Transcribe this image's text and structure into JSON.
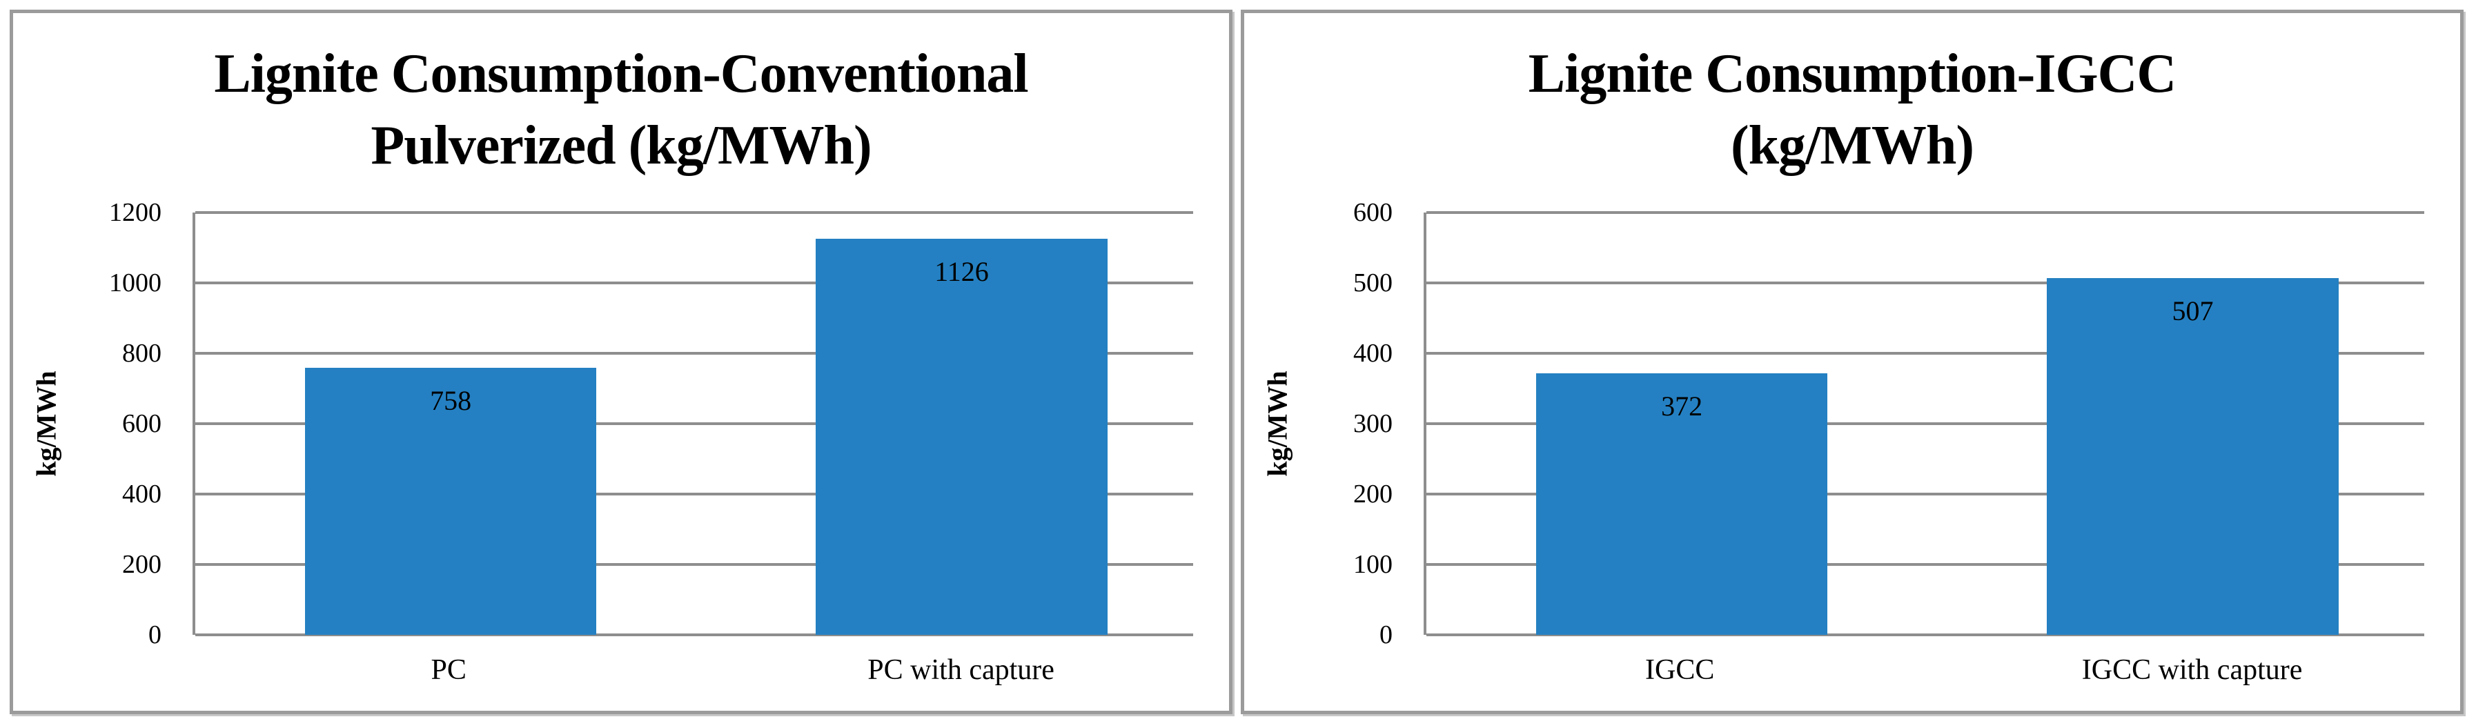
{
  "page": {
    "background": "#ffffff"
  },
  "colors": {
    "bar_fill": "#2480C2",
    "gridline": "#8E8E8E",
    "panel_border": "#9B9B9B",
    "text": "#000000"
  },
  "chart_data": [
    {
      "type": "bar",
      "title": "Lignite Consumption-Conventional Pulverized (kg/MWh)",
      "title_lines": [
        "Lignite Consumption-Conventional",
        "Pulverized (kg/MWh)"
      ],
      "xlabel": "",
      "ylabel": "kg/MWh",
      "categories": [
        "PC",
        "PC with capture"
      ],
      "values": [
        758,
        1126
      ],
      "data_labels": [
        "758",
        "1126"
      ],
      "data_label_position": "inside-top",
      "ylim": [
        0,
        1200
      ],
      "ytick_step": 200,
      "yticks": [
        0,
        200,
        400,
        600,
        800,
        1000,
        1200
      ],
      "grid": true,
      "legend": "none"
    },
    {
      "type": "bar",
      "title": "Lignite Consumption-IGCC (kg/MWh)",
      "title_lines": [
        "Lignite Consumption-IGCC",
        "(kg/MWh)"
      ],
      "xlabel": "",
      "ylabel": "kg/MWh",
      "categories": [
        "IGCC",
        "IGCC with capture"
      ],
      "values": [
        372,
        507
      ],
      "data_labels": [
        "372",
        "507"
      ],
      "data_label_position": "inside-top",
      "ylim": [
        0,
        600
      ],
      "ytick_step": 100,
      "yticks": [
        0,
        100,
        200,
        300,
        400,
        500,
        600
      ],
      "grid": true,
      "legend": "none"
    }
  ]
}
